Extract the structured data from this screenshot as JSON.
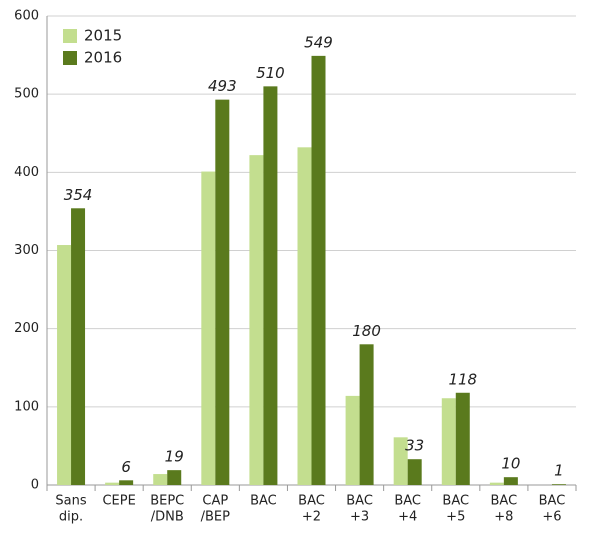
{
  "chart_data": {
    "type": "bar",
    "categories": [
      [
        "Sans",
        "dip."
      ],
      [
        "CEPE"
      ],
      [
        "BEPC",
        "/DNB"
      ],
      [
        "CAP",
        "/BEP"
      ],
      [
        "BAC"
      ],
      [
        "BAC",
        "+2"
      ],
      [
        "BAC",
        "+3"
      ],
      [
        "BAC",
        "+4"
      ],
      [
        "BAC",
        "+5"
      ],
      [
        "BAC",
        "+8"
      ],
      [
        "BAC",
        "+6"
      ]
    ],
    "series": [
      {
        "name": "2015",
        "color": "#c3de8f",
        "values": [
          307,
          3,
          14,
          401,
          422,
          432,
          114,
          61,
          111,
          3,
          0
        ]
      },
      {
        "name": "2016",
        "color": "#5a7a1d",
        "values": [
          354,
          6,
          19,
          493,
          510,
          549,
          180,
          33,
          118,
          10,
          1
        ]
      }
    ],
    "ylim": [
      0,
      600
    ],
    "yticks": [
      0,
      100,
      200,
      300,
      400,
      500,
      600
    ],
    "grid": true,
    "legend": "top-left"
  }
}
